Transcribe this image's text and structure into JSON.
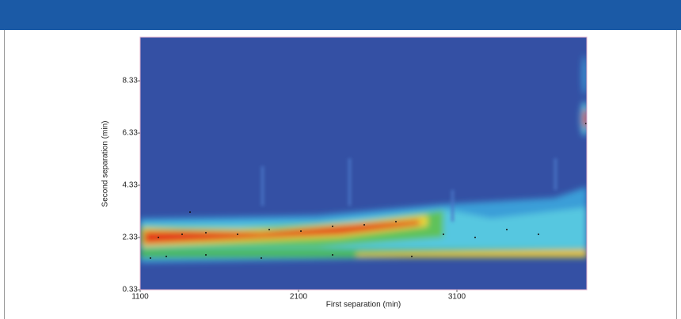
{
  "chart_data": {
    "type": "heatmap-image",
    "xlabel": "First separation (min)",
    "ylabel": "Second separation (min)",
    "xlim": [
      1100,
      3920
    ],
    "xticks": [
      1100,
      2100,
      3100
    ],
    "ylim": [
      0.33,
      10
    ],
    "yticks": [
      0.33,
      2.33,
      4.33,
      6.33,
      8.33
    ]
  }
}
